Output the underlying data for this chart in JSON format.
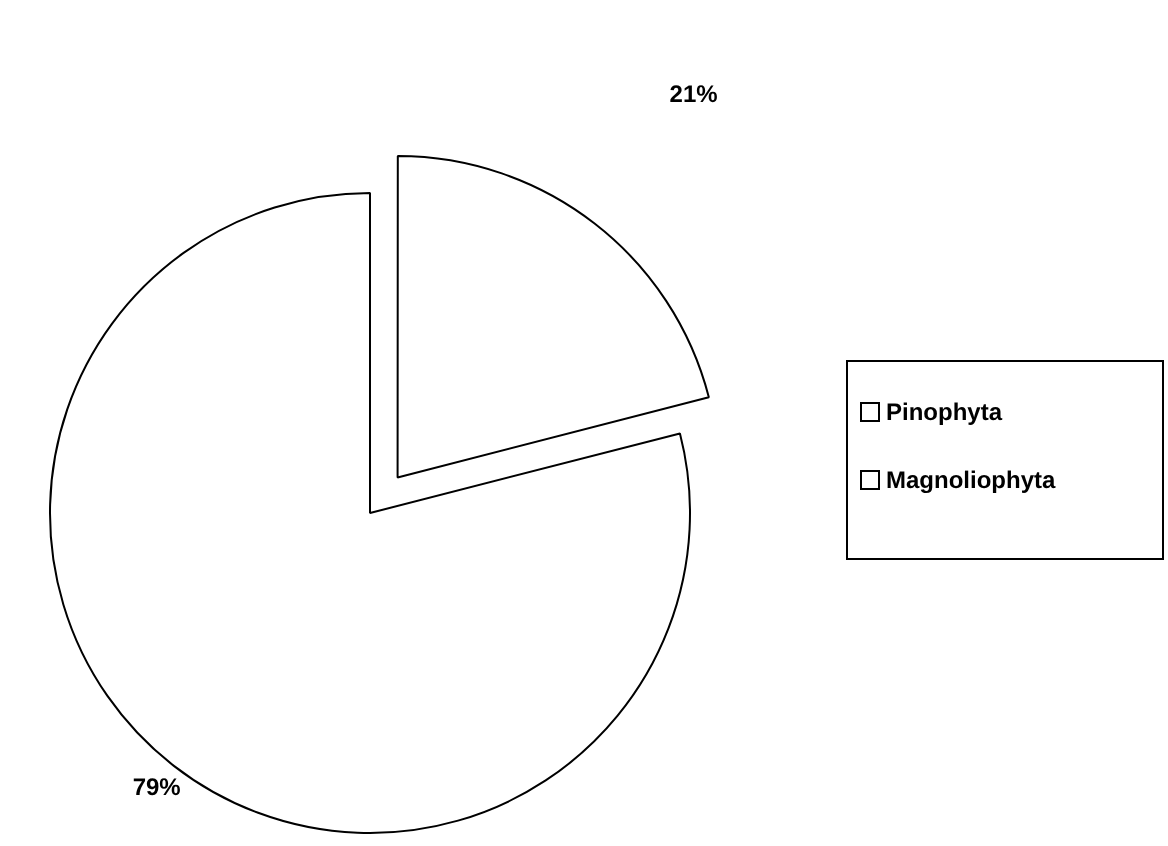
{
  "chart_data": {
    "type": "pie",
    "categories": [
      "Pinophyta",
      "Magnoliophyta"
    ],
    "values": [
      21,
      79
    ],
    "colors": [
      "#ffffff",
      "#ffffff"
    ],
    "value_labels": [
      "21%",
      "79%"
    ],
    "legend": "right"
  }
}
